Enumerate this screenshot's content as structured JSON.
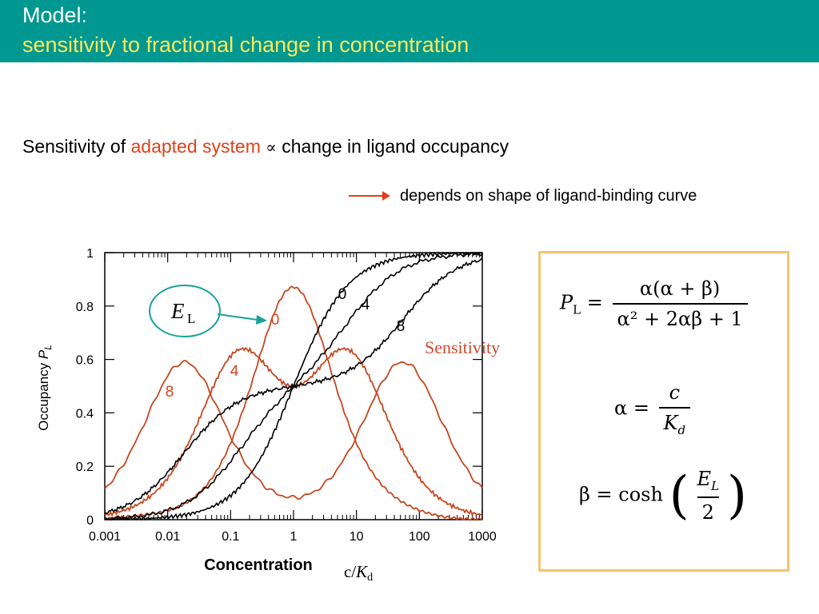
{
  "header": {
    "title_line1": "Model:",
    "title_line2": "sensitivity to fractional change in concentration"
  },
  "statement": {
    "prefix": "Sensitivity of ",
    "highlight": "adapted system",
    "symbol": "∝",
    "suffix": " change in ligand occupancy"
  },
  "note": {
    "text": "depends on shape of ligand-binding curve"
  },
  "chart_data": {
    "type": "line",
    "x_scale": "log",
    "xlim": [
      0.001,
      1000
    ],
    "ylim": [
      0,
      1
    ],
    "x_ticks": [
      "0.001",
      "0.01",
      "0.1",
      "1",
      "10",
      "100",
      "1000"
    ],
    "y_ticks": [
      "0",
      "0.2",
      "0.4",
      "0.6",
      "0.8",
      "1"
    ],
    "ylabel_prefix": "Occupancy ",
    "ylabel_var": "P",
    "ylabel_sub": "L",
    "xlabel": "Concentration",
    "xlabel_secondary_var": "c/K",
    "xlabel_secondary_sub": "d",
    "colors": {
      "occupancy": "#000000",
      "sensitivity": "#c8461e",
      "callout_arrow": "#17a398",
      "callout_border": "#17a398"
    },
    "occupancy_series": [
      {
        "name": "0",
        "EL": 0
      },
      {
        "name": "4",
        "EL": 4
      },
      {
        "name": "8",
        "EL": 8
      }
    ],
    "sensitivity_series": [
      {
        "name": "0",
        "EL": 0
      },
      {
        "name": "4",
        "EL": 4
      },
      {
        "name": "8",
        "EL": 8
      }
    ],
    "sensitivity_label": "Sensitivity",
    "callout_label_var": "E",
    "callout_label_sub": "L",
    "sensitivity_peak_values": {
      "0": 0.87,
      "4": 0.64,
      "8": 0.59
    }
  },
  "formulas": {
    "pl_lhs": "P",
    "pl_lhs_sub": "L",
    "pl_num": "α(α + β)",
    "pl_den": "α² + 2αβ + 1",
    "alpha_lhs": "α",
    "alpha_num": "c",
    "alpha_den_var": "K",
    "alpha_den_sub": "d",
    "beta_lhs": "β",
    "beta_fn": "cosh",
    "beta_num_var": "E",
    "beta_num_sub": "L",
    "beta_den": "2"
  }
}
